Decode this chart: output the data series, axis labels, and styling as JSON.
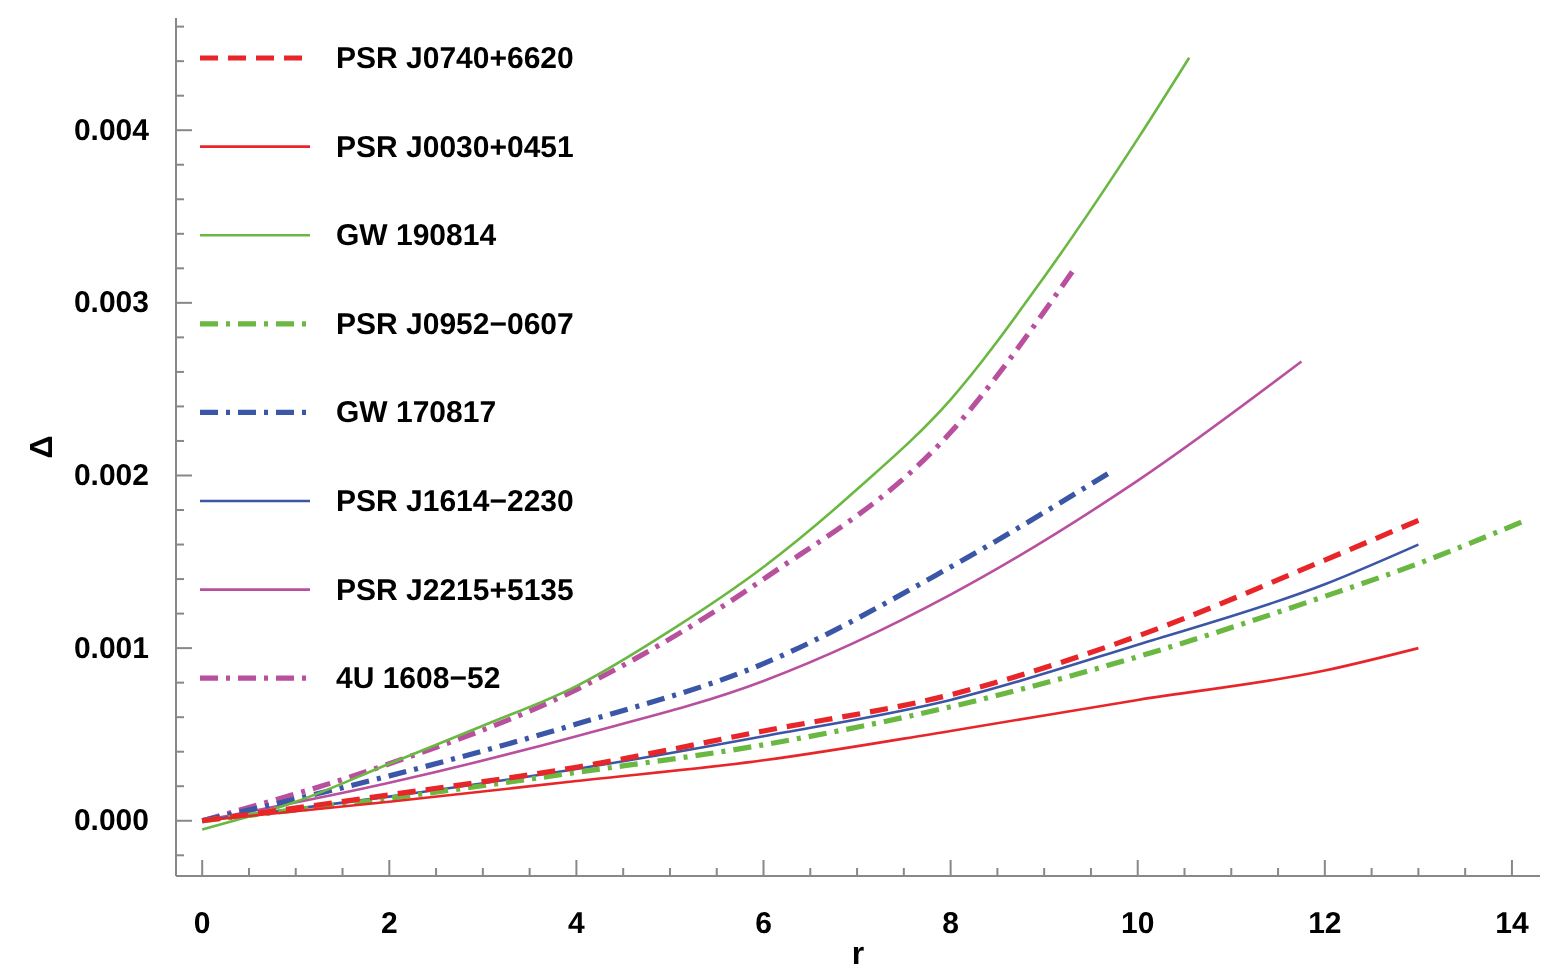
{
  "chart_data": {
    "type": "line",
    "xlabel": "r",
    "ylabel": "Δ",
    "xlim": [
      -0.28,
      14.3
    ],
    "ylim": [
      -0.00032,
      0.00465
    ],
    "xticks": [
      0,
      {
        "value": 0.5,
        "label": null
      },
      {
        "value": 1,
        "label": null
      },
      {
        "value": 1.5,
        "label": null
      },
      2,
      {
        "value": 2.5,
        "label": null
      },
      {
        "value": 3,
        "label": null
      },
      {
        "value": 3.5,
        "label": null
      },
      4,
      {
        "value": 4.5,
        "label": null
      },
      {
        "value": 5,
        "label": null
      },
      {
        "value": 5.5,
        "label": null
      },
      6,
      {
        "value": 6.5,
        "label": null
      },
      {
        "value": 7,
        "label": null
      },
      {
        "value": 7.5,
        "label": null
      },
      8,
      {
        "value": 8.5,
        "label": null
      },
      {
        "value": 9,
        "label": null
      },
      {
        "value": 9.5,
        "label": null
      },
      10,
      {
        "value": 10.5,
        "label": null
      },
      {
        "value": 11,
        "label": null
      },
      {
        "value": 11.5,
        "label": null
      },
      12,
      {
        "value": 12.5,
        "label": null
      },
      {
        "value": 13,
        "label": null
      },
      {
        "value": 13.5,
        "label": null
      },
      14
    ],
    "yticks": [
      {
        "value": -0.0002,
        "label": null
      },
      {
        "value": 0,
        "label": "0.000"
      },
      {
        "value": 0.0002,
        "label": null
      },
      {
        "value": 0.0004,
        "label": null
      },
      {
        "value": 0.0006,
        "label": null
      },
      {
        "value": 0.0008,
        "label": null
      },
      {
        "value": 0.001,
        "label": "0.001"
      },
      {
        "value": 0.0012,
        "label": null
      },
      {
        "value": 0.0014,
        "label": null
      },
      {
        "value": 0.0016,
        "label": null
      },
      {
        "value": 0.0018,
        "label": null
      },
      {
        "value": 0.002,
        "label": "0.002"
      },
      {
        "value": 0.0022,
        "label": null
      },
      {
        "value": 0.0024,
        "label": null
      },
      {
        "value": 0.0026,
        "label": null
      },
      {
        "value": 0.0028,
        "label": null
      },
      {
        "value": 0.003,
        "label": "0.003"
      },
      {
        "value": 0.0032,
        "label": null
      },
      {
        "value": 0.0034,
        "label": null
      },
      {
        "value": 0.0036,
        "label": null
      },
      {
        "value": 0.0038,
        "label": null
      },
      {
        "value": 0.004,
        "label": "0.004"
      },
      {
        "value": 0.0042,
        "label": null
      },
      {
        "value": 0.0044,
        "label": null
      },
      {
        "value": 0.0046,
        "label": null
      }
    ],
    "legend": "top left",
    "marker": "none",
    "series": [
      {
        "name": "PSR J0740+6620",
        "color": "#e8262a",
        "line_style": "dashed",
        "x": [
          0,
          2,
          4,
          6,
          8,
          10,
          12,
          13
        ],
        "values": [
          0,
          0.00015,
          0.00031,
          0.00052,
          0.00073,
          0.00107,
          0.00151,
          0.00174
        ]
      },
      {
        "name": "PSR J0030+0451",
        "color": "#e8262a",
        "line_style": "solid",
        "x": [
          0,
          2,
          4,
          6,
          8,
          10,
          12,
          13
        ],
        "values": [
          0,
          0.00011,
          0.00023,
          0.00035,
          0.00052,
          0.0007,
          0.00087,
          0.001
        ]
      },
      {
        "name": "GW 190814",
        "color": "#6ab842",
        "line_style": "solid",
        "x": [
          0,
          1,
          2,
          3,
          4,
          5,
          6,
          7,
          8,
          9,
          10,
          10.55
        ],
        "values": [
          -5e-05,
          0.00011,
          0.00033,
          0.00055,
          0.00078,
          0.0011,
          0.00147,
          0.00192,
          0.00244,
          0.00315,
          0.00395,
          0.00442
        ]
      },
      {
        "name": "PSR J0952−0607",
        "color": "#6ab842",
        "line_style": "dashdot",
        "x": [
          0,
          2,
          4,
          6,
          8,
          10,
          12,
          13,
          14.1
        ],
        "values": [
          0,
          0.00013,
          0.00028,
          0.00044,
          0.00066,
          0.00095,
          0.0013,
          0.00149,
          0.00173
        ]
      },
      {
        "name": "GW 170817",
        "color": "#3b56a6",
        "line_style": "dashdot",
        "x": [
          0,
          2,
          4,
          6,
          8,
          9.68
        ],
        "values": [
          0,
          0.00026,
          0.00056,
          0.00091,
          0.00147,
          0.00201
        ]
      },
      {
        "name": "PSR J1614−2230",
        "color": "#3b56a6",
        "line_style": "solid",
        "x": [
          0,
          2,
          4,
          6,
          8,
          10,
          12,
          13
        ],
        "values": [
          0,
          0.00014,
          0.0003,
          0.00049,
          0.0007,
          0.00102,
          0.00137,
          0.0016
        ]
      },
      {
        "name": "PSR J2215+5135",
        "color": "#b8509e",
        "line_style": "solid",
        "x": [
          0,
          2,
          4,
          6,
          8,
          10,
          11.75
        ],
        "values": [
          0,
          0.00022,
          0.00049,
          0.00081,
          0.00131,
          0.00197,
          0.00266
        ]
      },
      {
        "name": "4U 1608−52",
        "color": "#b8509e",
        "line_style": "dashdot",
        "x": [
          0,
          2,
          4,
          6,
          8,
          9.3
        ],
        "values": [
          0,
          0.00033,
          0.00076,
          0.0014,
          0.00225,
          0.00318
        ]
      }
    ]
  }
}
